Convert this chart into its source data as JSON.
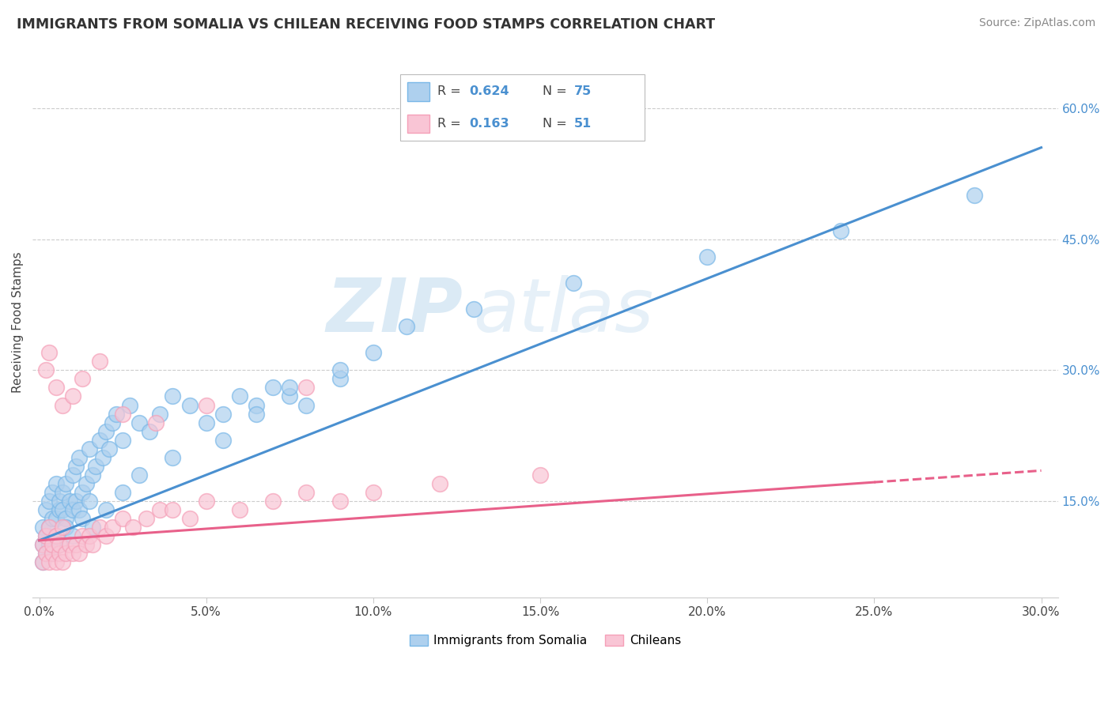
{
  "title": "IMMIGRANTS FROM SOMALIA VS CHILEAN RECEIVING FOOD STAMPS CORRELATION CHART",
  "source": "Source: ZipAtlas.com",
  "ylabel": "Receiving Food Stamps",
  "y_ticks_right": [
    "15.0%",
    "30.0%",
    "45.0%",
    "60.0%"
  ],
  "y_ticks_right_vals": [
    0.15,
    0.3,
    0.45,
    0.6
  ],
  "xlim": [
    -0.002,
    0.305
  ],
  "ylim": [
    0.04,
    0.67
  ],
  "somalia_color": "#7ab8e8",
  "somalia_color_fill": "#aed0ee",
  "chilean_color": "#f5a0b8",
  "chilean_color_fill": "#f9c5d5",
  "trend_somalia_color": "#4a90d0",
  "trend_chilean_color": "#e8608a",
  "r_somalia": 0.624,
  "n_somalia": 75,
  "r_chilean": 0.163,
  "n_chilean": 51,
  "legend_label_somalia": "Immigrants from Somalia",
  "legend_label_chilean": "Chileans",
  "watermark_zip": "ZIP",
  "watermark_atlas": "atlas",
  "somalia_x": [
    0.001,
    0.001,
    0.002,
    0.002,
    0.003,
    0.003,
    0.004,
    0.004,
    0.005,
    0.005,
    0.006,
    0.006,
    0.007,
    0.007,
    0.008,
    0.008,
    0.009,
    0.01,
    0.01,
    0.011,
    0.011,
    0.012,
    0.012,
    0.013,
    0.014,
    0.015,
    0.015,
    0.016,
    0.017,
    0.018,
    0.019,
    0.02,
    0.021,
    0.022,
    0.023,
    0.025,
    0.027,
    0.03,
    0.033,
    0.036,
    0.04,
    0.045,
    0.05,
    0.055,
    0.06,
    0.065,
    0.07,
    0.075,
    0.08,
    0.09,
    0.001,
    0.002,
    0.003,
    0.004,
    0.005,
    0.006,
    0.008,
    0.01,
    0.013,
    0.016,
    0.02,
    0.025,
    0.03,
    0.04,
    0.055,
    0.065,
    0.075,
    0.09,
    0.1,
    0.11,
    0.13,
    0.16,
    0.2,
    0.24,
    0.28
  ],
  "somalia_y": [
    0.1,
    0.12,
    0.11,
    0.14,
    0.12,
    0.15,
    0.13,
    0.16,
    0.13,
    0.17,
    0.14,
    0.15,
    0.14,
    0.16,
    0.13,
    0.17,
    0.15,
    0.14,
    0.18,
    0.15,
    0.19,
    0.14,
    0.2,
    0.16,
    0.17,
    0.15,
    0.21,
    0.18,
    0.19,
    0.22,
    0.2,
    0.23,
    0.21,
    0.24,
    0.25,
    0.22,
    0.26,
    0.24,
    0.23,
    0.25,
    0.27,
    0.26,
    0.24,
    0.25,
    0.27,
    0.26,
    0.28,
    0.27,
    0.26,
    0.29,
    0.08,
    0.09,
    0.1,
    0.09,
    0.11,
    0.1,
    0.12,
    0.11,
    0.13,
    0.12,
    0.14,
    0.16,
    0.18,
    0.2,
    0.22,
    0.25,
    0.28,
    0.3,
    0.32,
    0.35,
    0.37,
    0.4,
    0.43,
    0.46,
    0.5
  ],
  "chilean_x": [
    0.001,
    0.001,
    0.002,
    0.002,
    0.003,
    0.003,
    0.004,
    0.004,
    0.005,
    0.005,
    0.006,
    0.006,
    0.007,
    0.007,
    0.008,
    0.009,
    0.01,
    0.011,
    0.012,
    0.013,
    0.014,
    0.015,
    0.016,
    0.018,
    0.02,
    0.022,
    0.025,
    0.028,
    0.032,
    0.036,
    0.04,
    0.045,
    0.05,
    0.06,
    0.07,
    0.08,
    0.09,
    0.1,
    0.12,
    0.15,
    0.002,
    0.003,
    0.005,
    0.007,
    0.01,
    0.013,
    0.018,
    0.025,
    0.035,
    0.05,
    0.08
  ],
  "chilean_y": [
    0.08,
    0.1,
    0.09,
    0.11,
    0.08,
    0.12,
    0.09,
    0.1,
    0.08,
    0.11,
    0.09,
    0.1,
    0.08,
    0.12,
    0.09,
    0.1,
    0.09,
    0.1,
    0.09,
    0.11,
    0.1,
    0.11,
    0.1,
    0.12,
    0.11,
    0.12,
    0.13,
    0.12,
    0.13,
    0.14,
    0.14,
    0.13,
    0.15,
    0.14,
    0.15,
    0.16,
    0.15,
    0.16,
    0.17,
    0.18,
    0.3,
    0.32,
    0.28,
    0.26,
    0.27,
    0.29,
    0.31,
    0.25,
    0.24,
    0.26,
    0.28
  ],
  "trend_somalia_x0": 0.0,
  "trend_somalia_y0": 0.105,
  "trend_somalia_x1": 0.3,
  "trend_somalia_y1": 0.555,
  "trend_chilean_x0": 0.0,
  "trend_chilean_y0": 0.105,
  "trend_chilean_x1": 0.3,
  "trend_chilean_y1": 0.185
}
